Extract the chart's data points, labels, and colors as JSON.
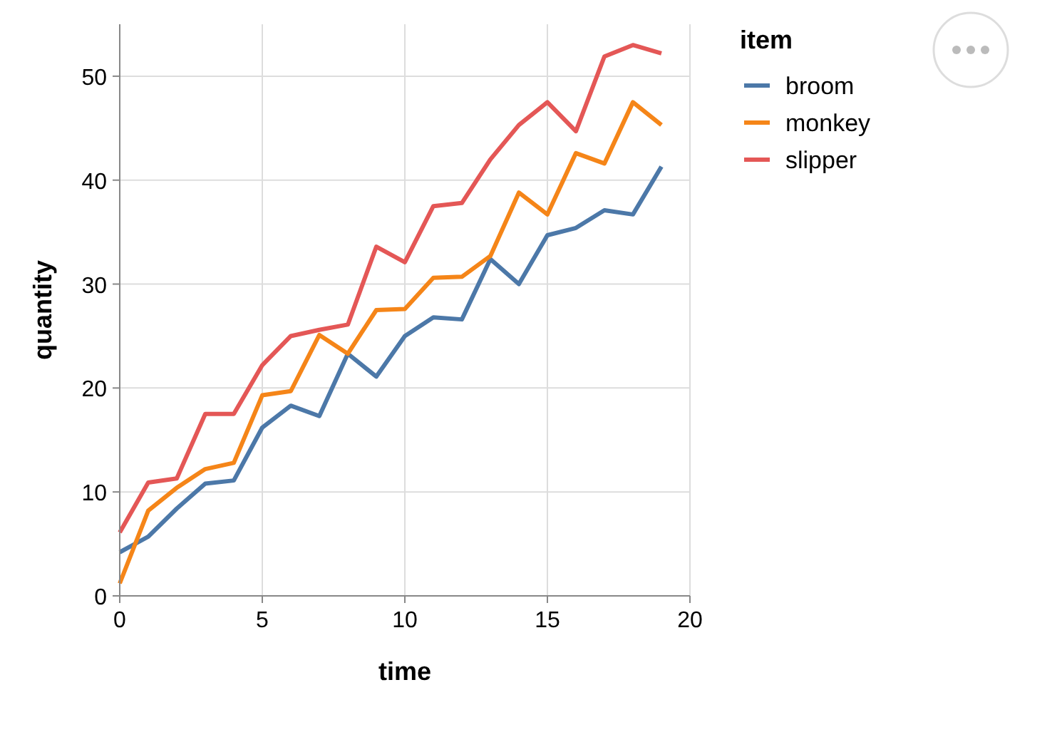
{
  "chart_data": {
    "type": "line",
    "xlabel": "time",
    "ylabel": "quantity",
    "legend_title": "item",
    "x": [
      0,
      1,
      2,
      3,
      4,
      5,
      6,
      7,
      8,
      9,
      10,
      11,
      12,
      13,
      14,
      15,
      16,
      17,
      18,
      19
    ],
    "series": [
      {
        "name": "broom",
        "color": "#4c78a8",
        "values": [
          4.2,
          5.7,
          8.4,
          10.8,
          11.1,
          16.2,
          18.3,
          17.3,
          23.3,
          21.1,
          25,
          26.8,
          26.6,
          32.4,
          30,
          34.7,
          35.4,
          37.1,
          36.7,
          41.3
        ]
      },
      {
        "name": "monkey",
        "color": "#f58518",
        "values": [
          1.2,
          8.2,
          10.4,
          12.2,
          12.8,
          19.3,
          19.7,
          25.1,
          23.3,
          27.5,
          27.6,
          30.6,
          30.7,
          32.7,
          38.8,
          36.7,
          42.6,
          41.6,
          47.5,
          45.3
        ]
      },
      {
        "name": "slipper",
        "color": "#e45756",
        "values": [
          6.1,
          10.9,
          11.3,
          17.5,
          17.5,
          22.2,
          25,
          25.6,
          26.1,
          33.6,
          32.1,
          37.5,
          37.8,
          42,
          45.3,
          47.5,
          44.7,
          51.9,
          53,
          52.2
        ]
      }
    ],
    "xlim": [
      0,
      20
    ],
    "xticks": [
      0,
      5,
      10,
      15,
      20
    ],
    "ylim": [
      0,
      55
    ],
    "yticks": [
      0,
      10,
      20,
      30,
      40,
      50
    ],
    "grid": true,
    "legend": "right",
    "marker": "none",
    "line_style": "solid"
  }
}
